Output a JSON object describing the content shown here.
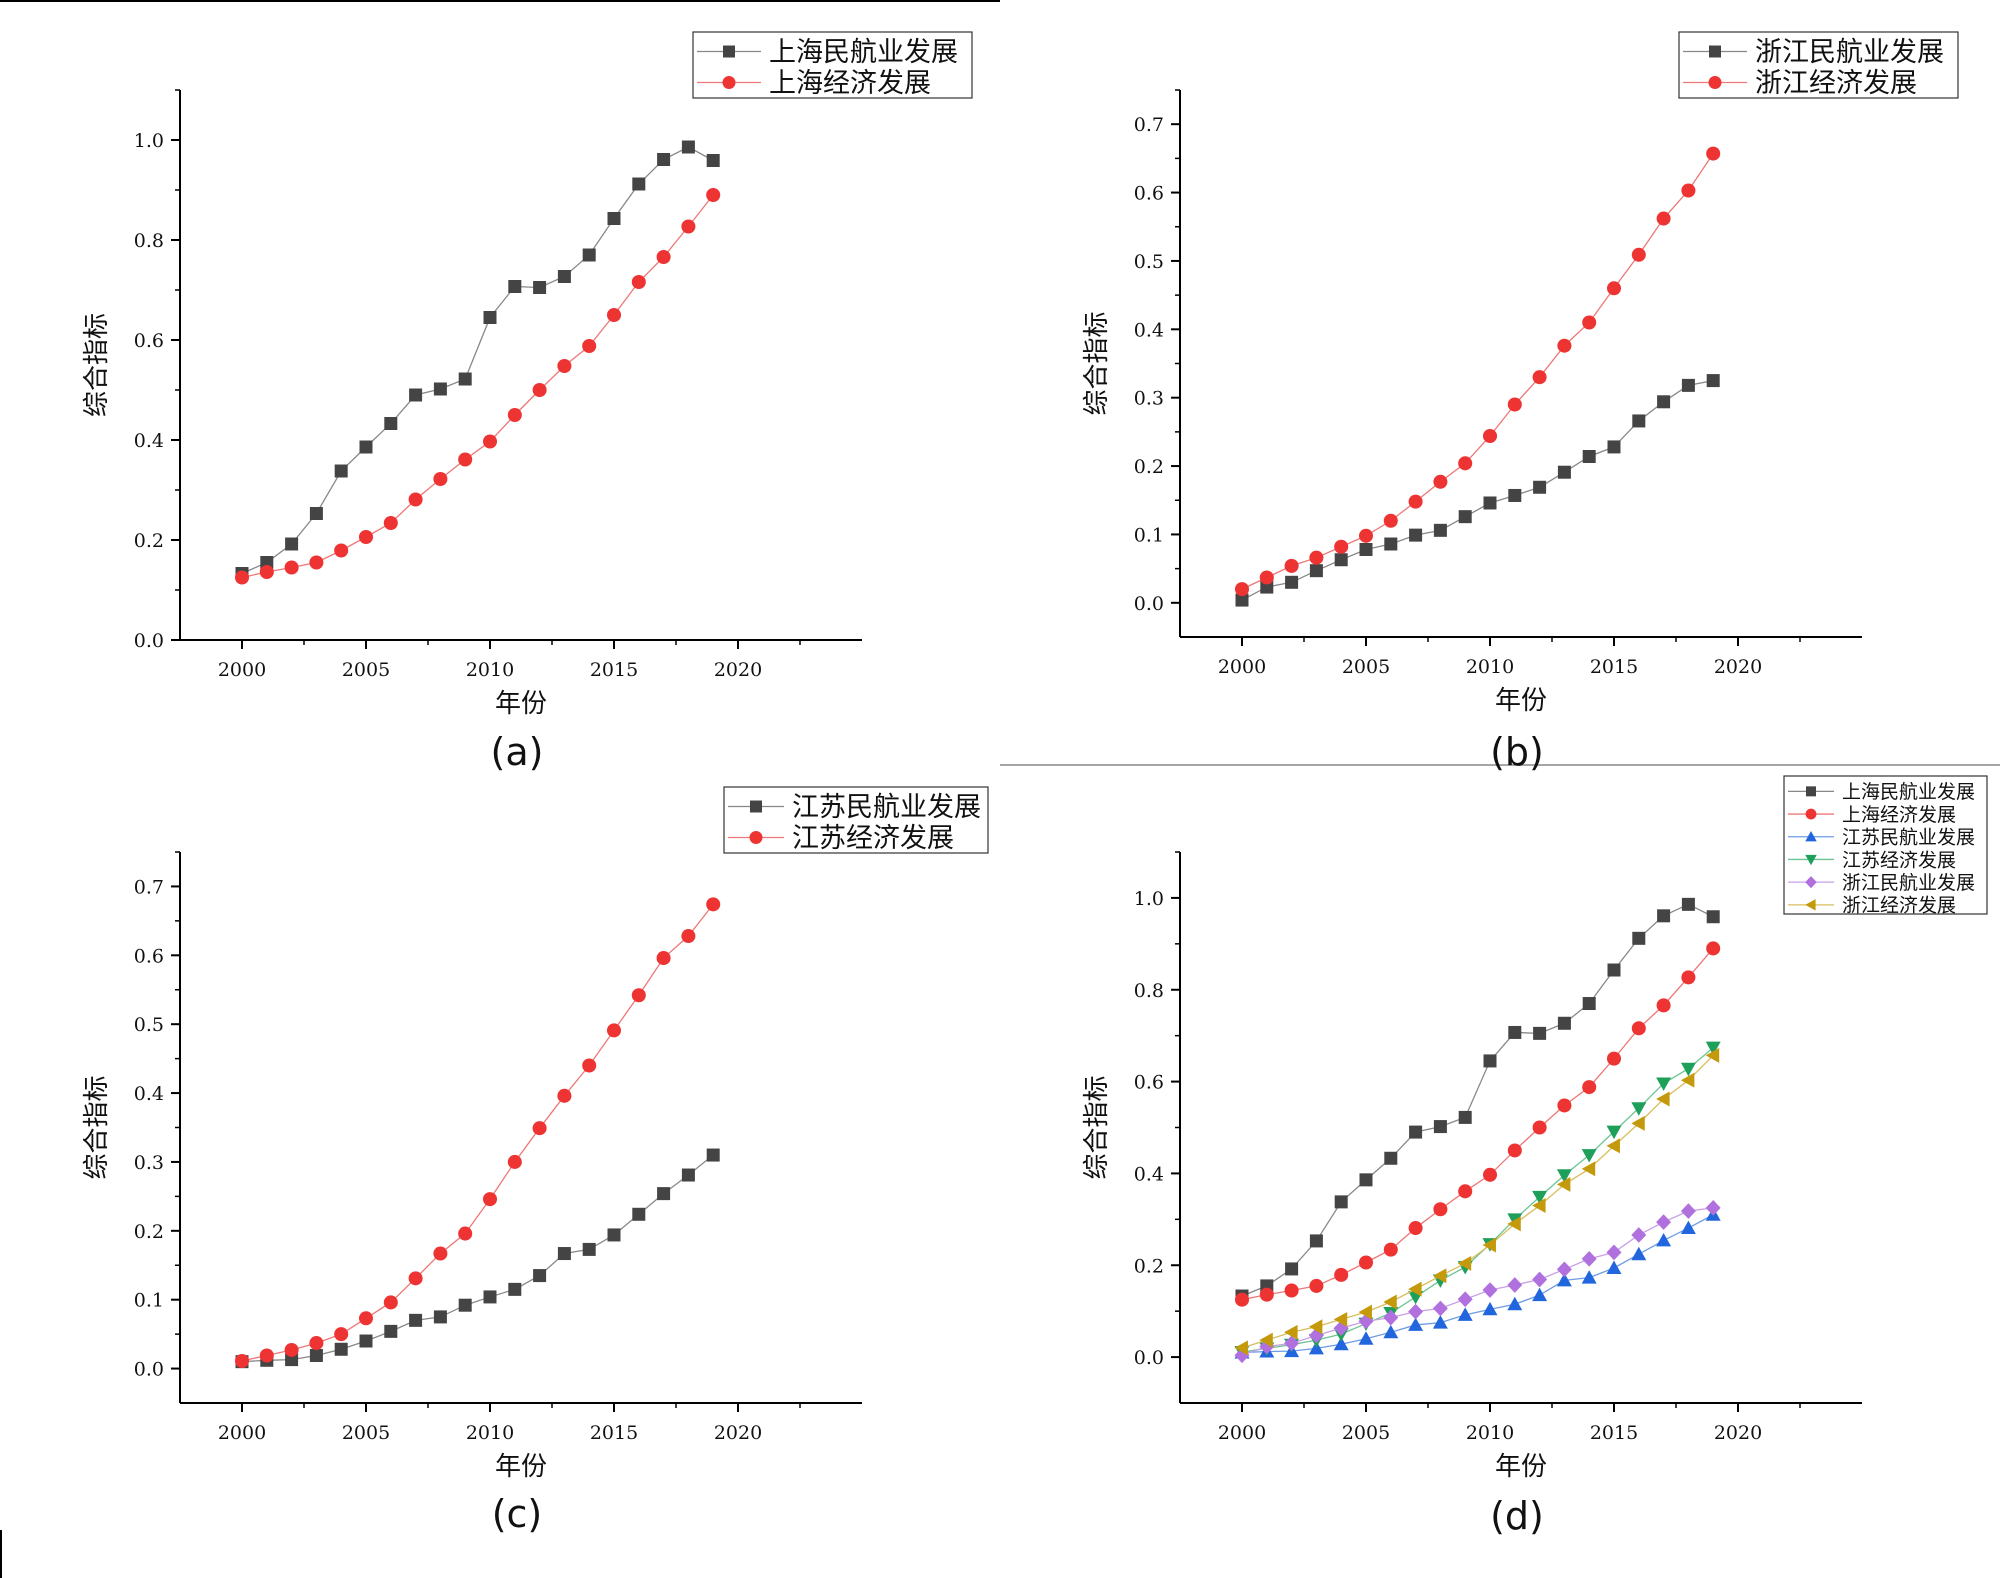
{
  "chart_data": [
    {
      "panel": "(a)",
      "type": "line",
      "xlabel": "年份",
      "ylabel": "综合指标",
      "xlim": [
        1997.5,
        2025
      ],
      "ylim": [
        0,
        1.1
      ],
      "xticks": [
        "2000",
        "2005",
        "2010",
        "2015",
        "2020"
      ],
      "yticks": [
        "0.0",
        "0.2",
        "0.4",
        "0.6",
        "0.8",
        "1.0"
      ],
      "legend_position": "top-right",
      "x": [
        2000,
        2001,
        2002,
        2003,
        2004,
        2005,
        2006,
        2007,
        2008,
        2009,
        2010,
        2011,
        2012,
        2013,
        2014,
        2015,
        2016,
        2017,
        2018,
        2019
      ],
      "series": [
        {
          "name": "上海民航业发展",
          "marker": "square",
          "color": "#444444",
          "line_color": "#888888",
          "values": [
            0.133,
            0.155,
            0.192,
            0.253,
            0.338,
            0.386,
            0.433,
            0.49,
            0.502,
            0.522,
            0.645,
            0.707,
            0.705,
            0.727,
            0.77,
            0.843,
            0.912,
            0.961,
            0.986,
            0.959
          ]
        },
        {
          "name": "上海经济发展",
          "marker": "circle",
          "color": "#ee3333",
          "line_color": "#ee7777",
          "values": [
            0.125,
            0.136,
            0.145,
            0.155,
            0.179,
            0.206,
            0.234,
            0.281,
            0.322,
            0.361,
            0.397,
            0.45,
            0.5,
            0.548,
            0.588,
            0.65,
            0.716,
            0.766,
            0.827,
            0.89
          ]
        }
      ]
    },
    {
      "panel": "(b)",
      "type": "line",
      "xlabel": "年份",
      "ylabel": "综合指标",
      "xlim": [
        1997.5,
        2025
      ],
      "ylim": [
        -0.05,
        0.75
      ],
      "xticks": [
        "2000",
        "2005",
        "2010",
        "2015",
        "2020"
      ],
      "yticks": [
        "0.0",
        "0.1",
        "0.2",
        "0.3",
        "0.4",
        "0.5",
        "0.6",
        "0.7"
      ],
      "legend_position": "top-right",
      "x": [
        2000,
        2001,
        2002,
        2003,
        2004,
        2005,
        2006,
        2007,
        2008,
        2009,
        2010,
        2011,
        2012,
        2013,
        2014,
        2015,
        2016,
        2017,
        2018,
        2019
      ],
      "series": [
        {
          "name": "浙江民航业发展",
          "marker": "square",
          "color": "#444444",
          "line_color": "#888888",
          "values": [
            0.004,
            0.023,
            0.03,
            0.047,
            0.063,
            0.078,
            0.086,
            0.099,
            0.106,
            0.126,
            0.146,
            0.157,
            0.169,
            0.191,
            0.214,
            0.228,
            0.266,
            0.294,
            0.318,
            0.325
          ]
        },
        {
          "name": "浙江经济发展",
          "marker": "circle",
          "color": "#ee3333",
          "line_color": "#ee7777",
          "values": [
            0.02,
            0.037,
            0.054,
            0.066,
            0.082,
            0.098,
            0.12,
            0.148,
            0.177,
            0.204,
            0.244,
            0.29,
            0.33,
            0.376,
            0.41,
            0.46,
            0.509,
            0.562,
            0.603,
            0.657
          ]
        }
      ]
    },
    {
      "panel": "(c)",
      "type": "line",
      "xlabel": "年份",
      "ylabel": "综合指标",
      "xlim": [
        1997.5,
        2025
      ],
      "ylim": [
        -0.05,
        0.75
      ],
      "xticks": [
        "2000",
        "2005",
        "2010",
        "2015",
        "2020"
      ],
      "yticks": [
        "0.0",
        "0.1",
        "0.2",
        "0.3",
        "0.4",
        "0.5",
        "0.6",
        "0.7"
      ],
      "legend_position": "top-right",
      "x": [
        2000,
        2001,
        2002,
        2003,
        2004,
        2005,
        2006,
        2007,
        2008,
        2009,
        2010,
        2011,
        2012,
        2013,
        2014,
        2015,
        2016,
        2017,
        2018,
        2019
      ],
      "series": [
        {
          "name": "江苏民航业发展",
          "marker": "square",
          "color": "#444444",
          "line_color": "#888888",
          "values": [
            0.01,
            0.012,
            0.013,
            0.019,
            0.028,
            0.04,
            0.054,
            0.07,
            0.075,
            0.092,
            0.104,
            0.115,
            0.135,
            0.167,
            0.173,
            0.194,
            0.224,
            0.254,
            0.281,
            0.31
          ]
        },
        {
          "name": "江苏经济发展",
          "marker": "circle",
          "color": "#ee3333",
          "line_color": "#ee7777",
          "values": [
            0.011,
            0.019,
            0.027,
            0.037,
            0.05,
            0.073,
            0.096,
            0.131,
            0.167,
            0.196,
            0.246,
            0.3,
            0.349,
            0.396,
            0.44,
            0.491,
            0.542,
            0.596,
            0.628,
            0.674
          ]
        }
      ]
    },
    {
      "panel": "(d)",
      "type": "line",
      "xlabel": "年份",
      "ylabel": "综合指标",
      "xlim": [
        1997.5,
        2025
      ],
      "ylim": [
        -0.1,
        1.1
      ],
      "xticks": [
        "2000",
        "2005",
        "2010",
        "2015",
        "2020"
      ],
      "yticks": [
        "0.0",
        "0.2",
        "0.4",
        "0.6",
        "0.8",
        "1.0"
      ],
      "legend_position": "top-right",
      "x": [
        2000,
        2001,
        2002,
        2003,
        2004,
        2005,
        2006,
        2007,
        2008,
        2009,
        2010,
        2011,
        2012,
        2013,
        2014,
        2015,
        2016,
        2017,
        2018,
        2019
      ],
      "series": [
        {
          "name": "上海民航业发展",
          "marker": "square",
          "color": "#444444",
          "line_color": "#888888",
          "values": [
            0.133,
            0.155,
            0.192,
            0.253,
            0.338,
            0.386,
            0.433,
            0.49,
            0.502,
            0.522,
            0.645,
            0.707,
            0.705,
            0.727,
            0.77,
            0.843,
            0.912,
            0.961,
            0.986,
            0.959
          ]
        },
        {
          "name": "上海经济发展",
          "marker": "circle",
          "color": "#ee3333",
          "line_color": "#ee7777",
          "values": [
            0.125,
            0.136,
            0.145,
            0.155,
            0.179,
            0.206,
            0.234,
            0.281,
            0.322,
            0.361,
            0.397,
            0.45,
            0.5,
            0.548,
            0.588,
            0.65,
            0.716,
            0.766,
            0.827,
            0.89
          ]
        },
        {
          "name": "江苏民航业发展",
          "marker": "triangle-up",
          "color": "#2266dd",
          "line_color": "#6f9be6",
          "values": [
            0.01,
            0.012,
            0.013,
            0.019,
            0.028,
            0.04,
            0.054,
            0.07,
            0.075,
            0.092,
            0.104,
            0.115,
            0.135,
            0.167,
            0.173,
            0.194,
            0.224,
            0.254,
            0.281,
            0.31
          ]
        },
        {
          "name": "江苏经济发展",
          "marker": "triangle-down",
          "color": "#1fa05a",
          "line_color": "#6cc493",
          "values": [
            0.011,
            0.019,
            0.027,
            0.037,
            0.05,
            0.073,
            0.096,
            0.131,
            0.167,
            0.196,
            0.246,
            0.3,
            0.349,
            0.396,
            0.44,
            0.491,
            0.542,
            0.596,
            0.628,
            0.674
          ]
        },
        {
          "name": "浙江民航业发展",
          "marker": "diamond",
          "color": "#b070dd",
          "line_color": "#c9a0e8",
          "values": [
            0.004,
            0.023,
            0.03,
            0.047,
            0.063,
            0.078,
            0.086,
            0.099,
            0.106,
            0.126,
            0.146,
            0.157,
            0.169,
            0.191,
            0.214,
            0.228,
            0.266,
            0.294,
            0.318,
            0.325
          ]
        },
        {
          "name": "浙江经济发展",
          "marker": "triangle-left",
          "color": "#c49a0c",
          "line_color": "#d8bd5c",
          "values": [
            0.02,
            0.037,
            0.054,
            0.066,
            0.082,
            0.098,
            0.12,
            0.148,
            0.177,
            0.204,
            0.244,
            0.29,
            0.33,
            0.376,
            0.41,
            0.46,
            0.509,
            0.562,
            0.603,
            0.657
          ]
        }
      ]
    }
  ]
}
